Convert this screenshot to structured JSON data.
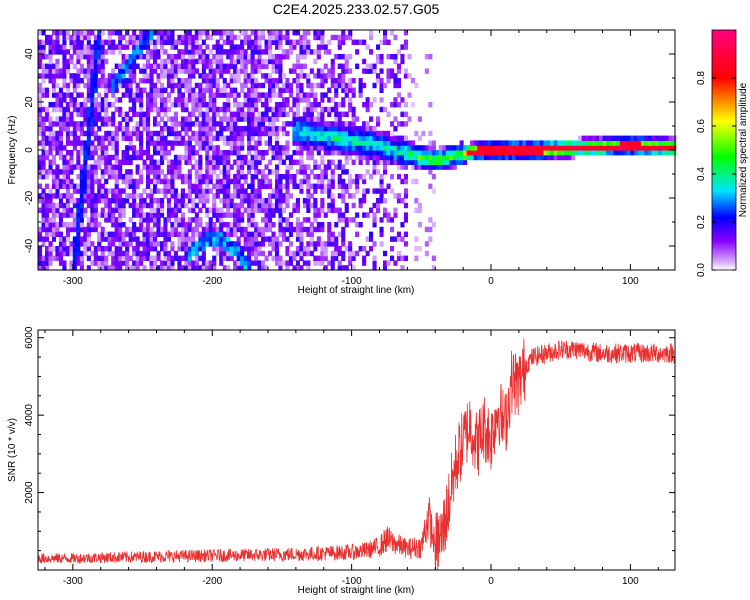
{
  "title": "C2E4.2025.233.02.57.G05",
  "chart_data": [
    {
      "type": "heatmap",
      "xlabel": "Height of straight line (km)",
      "ylabel": "Frequency (Hz)",
      "xlim": [
        -325,
        132
      ],
      "ylim": [
        -50,
        50
      ],
      "xticks": [
        -300,
        -200,
        -100,
        0,
        100
      ],
      "yticks": [
        -40,
        -20,
        0,
        20,
        40
      ],
      "colorbar": {
        "label": "Normalized spectral amplitude",
        "range": [
          0,
          1
        ],
        "ticks": [
          0.0,
          0.2,
          0.4,
          0.6,
          0.8
        ],
        "tick_labels": [
          "0.0",
          "0.2",
          "0.4",
          "0.6",
          "0.8"
        ],
        "colormap": [
          "#ffffff",
          "#8a00ff",
          "#0000ff",
          "#00e5ff",
          "#00ff00",
          "#ffff00",
          "#ff0000",
          "#ff0080"
        ]
      },
      "features": [
        {
          "name": "noise",
          "x": [
            -325,
            -60
          ],
          "y": [
            -50,
            50
          ],
          "level": 0.05
        },
        {
          "name": "signal-line",
          "points": [
            [
              -140,
              8
            ],
            [
              -110,
              5
            ],
            [
              -90,
              3
            ],
            [
              -70,
              0
            ],
            [
              -50,
              -3
            ],
            [
              -40,
              -4
            ],
            [
              -25,
              -2
            ],
            [
              -10,
              0
            ],
            [
              0,
              0
            ],
            [
              30,
              0
            ],
            [
              60,
              1
            ],
            [
              100,
              2
            ],
            [
              132,
              1
            ]
          ],
          "level": [
            0.3,
            0.9
          ]
        },
        {
          "name": "diagonal-streak",
          "points": [
            [
              -300,
              -48
            ],
            [
              -290,
              10
            ],
            [
              -282,
              50
            ]
          ]
        },
        {
          "name": "arc-low",
          "points": [
            [
              -215,
              -45
            ],
            [
              -200,
              -38
            ],
            [
              -185,
              -42
            ],
            [
              -170,
              -50
            ]
          ]
        },
        {
          "name": "arc-high",
          "points": [
            [
              -270,
              28
            ],
            [
              -255,
              38
            ],
            [
              -245,
              50
            ]
          ]
        }
      ]
    },
    {
      "type": "line",
      "xlabel": "Height of straight line (km)",
      "ylabel": "SNR (10 * v/v)",
      "xlim": [
        -325,
        132
      ],
      "ylim": [
        0,
        6200
      ],
      "xticks": [
        -300,
        -200,
        -100,
        0,
        100
      ],
      "yticks": [
        2000,
        4000,
        6000
      ],
      "color": "#e83030",
      "series": [
        {
          "x": [
            -325,
            -300,
            -280,
            -250,
            -220,
            -200,
            -180,
            -150,
            -120,
            -100,
            -90,
            -80,
            -75,
            -70,
            -60,
            -50,
            -45,
            -40,
            -35,
            -30,
            -25,
            -20,
            -15,
            -10,
            -5,
            0,
            5,
            10,
            15,
            20,
            25,
            30,
            40,
            50,
            60,
            80,
            100,
            120,
            132
          ],
          "y": [
            300,
            300,
            320,
            340,
            360,
            370,
            380,
            400,
            430,
            460,
            500,
            600,
            800,
            700,
            550,
            600,
            1400,
            600,
            900,
            1800,
            2800,
            3300,
            3800,
            3200,
            3700,
            3400,
            4200,
            3700,
            4900,
            4800,
            5300,
            5500,
            5600,
            5700,
            5700,
            5600,
            5600,
            5600,
            5600
          ]
        }
      ]
    }
  ]
}
